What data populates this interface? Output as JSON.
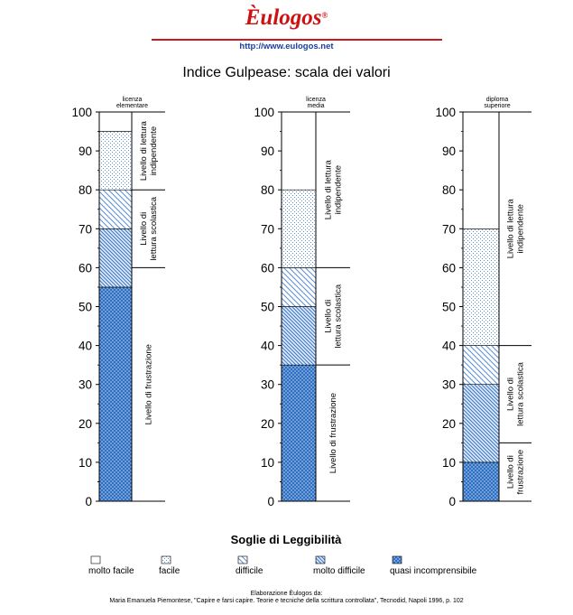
{
  "header": {
    "brand": "Èulogos",
    "reg_mark": "®",
    "url": "http://www.eulogos.net"
  },
  "chart_data": {
    "type": "bar",
    "title": "Indice Gulpease: scala dei valori",
    "ylim": [
      0,
      100
    ],
    "yticks": [
      0,
      10,
      20,
      30,
      40,
      50,
      60,
      70,
      80,
      90,
      100
    ],
    "legend_title": "Soglie di Leggibilità",
    "legend": [
      {
        "key": "molto_facile",
        "label": "molto facile"
      },
      {
        "key": "facile",
        "label": "facile"
      },
      {
        "key": "difficile",
        "label": "difficile"
      },
      {
        "key": "molto_difficile",
        "label": "molto difficile"
      },
      {
        "key": "quasi_incomprensibile",
        "label": "quasi incomprensibile"
      }
    ],
    "columns": [
      {
        "header": [
          "licenza",
          "elementare"
        ],
        "segments": [
          {
            "key": "quasi_incomprensibile",
            "from": 0,
            "to": 55
          },
          {
            "key": "molto_difficile",
            "from": 55,
            "to": 70
          },
          {
            "key": "difficile",
            "from": 70,
            "to": 80
          },
          {
            "key": "facile",
            "from": 80,
            "to": 95
          },
          {
            "key": "molto_facile",
            "from": 95,
            "to": 100
          }
        ],
        "levels": [
          {
            "from": 0,
            "to": 60,
            "label": [
              "Livello di frustrazione"
            ]
          },
          {
            "from": 60,
            "to": 80,
            "label": [
              "Livello di",
              "lettura scolastica"
            ]
          },
          {
            "from": 80,
            "to": 100,
            "label": [
              "Livello di lettura",
              "indipendente"
            ]
          }
        ]
      },
      {
        "header": [
          "licenza",
          "media"
        ],
        "segments": [
          {
            "key": "quasi_incomprensibile",
            "from": 0,
            "to": 35
          },
          {
            "key": "molto_difficile",
            "from": 35,
            "to": 50
          },
          {
            "key": "difficile",
            "from": 50,
            "to": 60
          },
          {
            "key": "facile",
            "from": 60,
            "to": 80
          },
          {
            "key": "molto_facile",
            "from": 80,
            "to": 100
          }
        ],
        "levels": [
          {
            "from": 0,
            "to": 35,
            "label": [
              "Livello di frustrazione"
            ]
          },
          {
            "from": 35,
            "to": 60,
            "label": [
              "Livello di",
              "lettura scolastica"
            ]
          },
          {
            "from": 60,
            "to": 100,
            "label": [
              "Livello di lettura",
              "indipendente"
            ]
          }
        ]
      },
      {
        "header": [
          "diploma",
          "superiore"
        ],
        "segments": [
          {
            "key": "quasi_incomprensibile",
            "from": 0,
            "to": 10
          },
          {
            "key": "molto_difficile",
            "from": 10,
            "to": 30
          },
          {
            "key": "difficile",
            "from": 30,
            "to": 40
          },
          {
            "key": "facile",
            "from": 40,
            "to": 70
          },
          {
            "key": "molto_facile",
            "from": 70,
            "to": 100
          }
        ],
        "levels": [
          {
            "from": 0,
            "to": 15,
            "label": [
              "Livello di",
              "frustrazione"
            ]
          },
          {
            "from": 15,
            "to": 40,
            "label": [
              "Livello di",
              "lettura scolastica"
            ]
          },
          {
            "from": 40,
            "to": 100,
            "label": [
              "Livello di lettura",
              "indipendente"
            ]
          }
        ]
      }
    ]
  },
  "footer": {
    "line1": "Elaborazione Èulogos da:",
    "line2": "Maria Emanuela Piemontese, \"Capire e farsi capire. Teorie e tecniche della scrittura controllata\", Tecnodid, Napoli 1996, p. 102"
  },
  "colors": {
    "dark_blue": "#2f6fbd",
    "mid_blue": "#5a8ecf",
    "light_blue": "#9fc2ea",
    "brand_red": "#d01010",
    "url_blue": "#1a3fa0"
  }
}
